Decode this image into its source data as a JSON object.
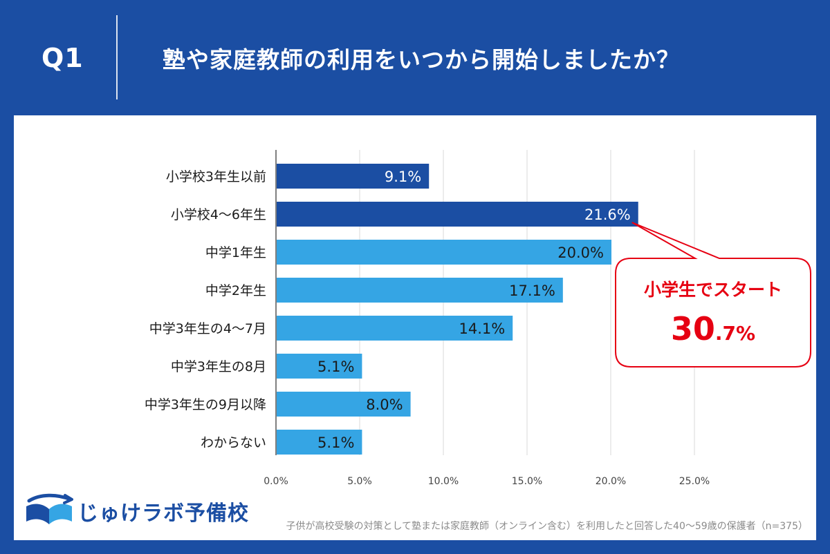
{
  "header": {
    "q_label": "Q1",
    "question": "塾や家庭教師の利用をいつから開始しましたか？"
  },
  "chart_data": {
    "type": "bar",
    "orientation": "horizontal",
    "categories": [
      "小学校3年生以前",
      "小学校4～6年生",
      "中学1年生",
      "中学2年生",
      "中学3年生の4～7月",
      "中学3年生の8月",
      "中学3年生の9月以降",
      "わからない"
    ],
    "values": [
      9.1,
      21.6,
      20.0,
      17.1,
      14.1,
      5.1,
      8.0,
      5.1
    ],
    "value_labels": [
      "9.1%",
      "21.6%",
      "20.0%",
      "17.1%",
      "14.1%",
      "5.1%",
      "8.0%",
      "5.1%"
    ],
    "highlight": [
      true,
      true,
      false,
      false,
      false,
      false,
      false,
      false
    ],
    "xlim": [
      0,
      25
    ],
    "xticks": [
      0,
      5,
      10,
      15,
      20,
      25
    ],
    "xtick_labels": [
      "0.0%",
      "5.0%",
      "10.0%",
      "15.0%",
      "20.0%",
      "25.0%"
    ],
    "grid": true,
    "colors": {
      "highlight": "#1b4ea3",
      "normal": "#35a5e4",
      "grid": "#d9d9d9",
      "axis": "#555555"
    },
    "callout": {
      "line1": "小学生でスタート",
      "value_main": "30",
      "value_small": ".7%",
      "color": "#e60012",
      "points_to": "小学校4～6年生"
    }
  },
  "brand": {
    "name": "じゅけラボ予備校",
    "icon": "open-book-logo-icon"
  },
  "footnote": "子供が高校受験の対策として塾または家庭教師（オンライン含む）を利用したと回答した40～59歳の保護者（n=375）"
}
